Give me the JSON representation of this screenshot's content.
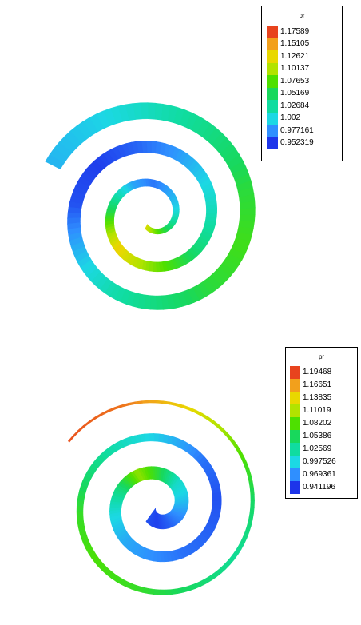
{
  "chart_data": [
    {
      "type": "heatmap",
      "variable": "pr",
      "legend": {
        "title": "pr",
        "placement": "top-right",
        "levels": [
          "1.17589",
          "1.15105",
          "1.12621",
          "1.10137",
          "1.07653",
          "1.05169",
          "1.02684",
          "1.002",
          "0.977161",
          "0.952319"
        ],
        "colors": [
          "#e8431e",
          "#f2a01c",
          "#e9d800",
          "#b2e300",
          "#4ee000",
          "#18d85c",
          "#10dca0",
          "#1cd8e4",
          "#2f8fff",
          "#1d35ea"
        ]
      },
      "spiral": {
        "turns": 2.75,
        "values_along_arc": [
          1.12,
          1.09,
          1.06,
          1.03,
          1.0,
          0.985,
          0.97,
          0.985,
          1.03,
          1.08,
          1.13,
          1.1,
          1.07,
          1.04,
          1.02,
          1.0,
          0.98,
          0.965,
          0.955,
          0.96,
          0.99,
          1.02,
          1.04,
          1.06,
          1.07,
          1.06,
          1.04,
          1.02,
          1.0,
          0.99
        ]
      }
    },
    {
      "type": "heatmap",
      "variable": "pr",
      "legend": {
        "title": "pr",
        "placement": "top-right",
        "levels": [
          "1.19468",
          "1.16651",
          "1.13835",
          "1.11019",
          "1.08202",
          "1.05386",
          "1.02569",
          "0.997526",
          "0.969361",
          "0.941196"
        ],
        "colors": [
          "#e8431e",
          "#f2a01c",
          "#e9d800",
          "#b2e300",
          "#4ee000",
          "#18d85c",
          "#10dca0",
          "#1cd8e4",
          "#2f8fff",
          "#1d35ea"
        ]
      },
      "spiral": {
        "turns": 2.75,
        "values_along_arc": [
          0.95,
          0.945,
          0.955,
          0.97,
          0.99,
          1.01,
          1.06,
          1.1,
          1.04,
          1.0,
          0.98,
          0.97,
          0.96,
          0.955,
          0.95,
          0.96,
          0.985,
          1.01,
          1.04,
          1.07,
          1.08,
          1.07,
          1.05,
          1.03,
          1.05,
          1.09,
          1.14,
          1.18,
          1.19
        ]
      }
    }
  ]
}
